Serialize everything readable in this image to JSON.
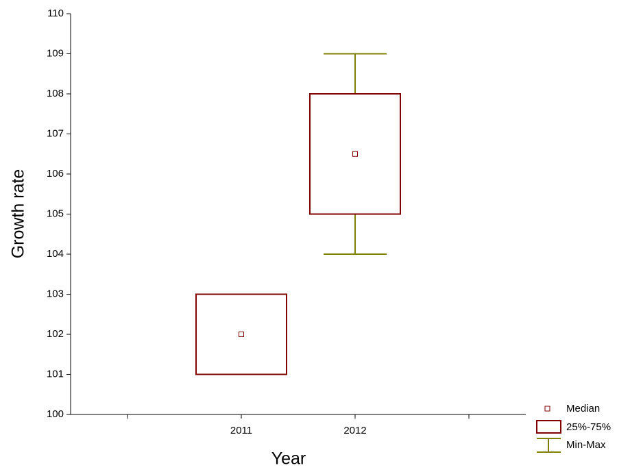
{
  "chart_data": {
    "type": "box",
    "xlabel": "Year",
    "ylabel": "Growth rate",
    "categories": [
      null,
      "2011",
      "2012",
      null
    ],
    "min": [
      null,
      101,
      104,
      null
    ],
    "q1": [
      null,
      101,
      105,
      null
    ],
    "median": [
      null,
      102,
      106.5,
      null
    ],
    "q3": [
      null,
      103,
      108,
      null
    ],
    "max": [
      null,
      103,
      109,
      null
    ],
    "ylim": [
      100,
      110
    ],
    "yticks": [
      100,
      101,
      102,
      103,
      104,
      105,
      106,
      107,
      108,
      109,
      110
    ],
    "legend": {
      "median": "Median",
      "box": "25%-75%",
      "whisker": "Min-Max"
    },
    "median_color": "#800000",
    "box_color": "#800000",
    "whisker_color": "#808000"
  }
}
